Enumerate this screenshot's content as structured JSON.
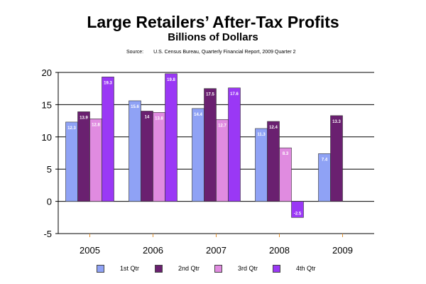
{
  "chart_data": {
    "type": "bar",
    "title": "Large Retailers’ After-Tax Profits",
    "subtitle": "Billions of Dollars",
    "source_label": "Source:",
    "source_text": "U.S. Census Bureau, Quarterly Financial Report, 2009 Quarter 2",
    "categories": [
      "2005",
      "2006",
      "2007",
      "2008",
      "2009"
    ],
    "ylim": [
      -5,
      20
    ],
    "yticks": [
      -5,
      0,
      5,
      10,
      15,
      20
    ],
    "grid": true,
    "legend_position": "bottom",
    "series": [
      {
        "name": "1st Qtr",
        "color": "#8fa2f5",
        "values": [
          12.3,
          15.6,
          14.4,
          11.3,
          7.4
        ],
        "labels": [
          "12.3",
          "15.6",
          "14.4",
          "11.3",
          "7.4"
        ]
      },
      {
        "name": "2nd Qtr",
        "color": "#6a2070",
        "values": [
          13.9,
          14,
          17.5,
          12.4,
          13.3
        ],
        "labels": [
          "13.9",
          "14",
          "17.5",
          "12.4",
          "13.3"
        ]
      },
      {
        "name": "3rd Qtr",
        "color": "#e08be0",
        "values": [
          12.8,
          13.8,
          12.7,
          8.3,
          null
        ],
        "labels": [
          "12.8",
          "13.8",
          "12.7",
          "8.3",
          null
        ]
      },
      {
        "name": "4th Qtr",
        "color": "#9a38f5",
        "values": [
          19.3,
          19.8,
          17.6,
          -2.5,
          null
        ],
        "labels": [
          "19.3",
          "19.8",
          "17.6",
          "-2.5",
          null
        ]
      }
    ]
  }
}
